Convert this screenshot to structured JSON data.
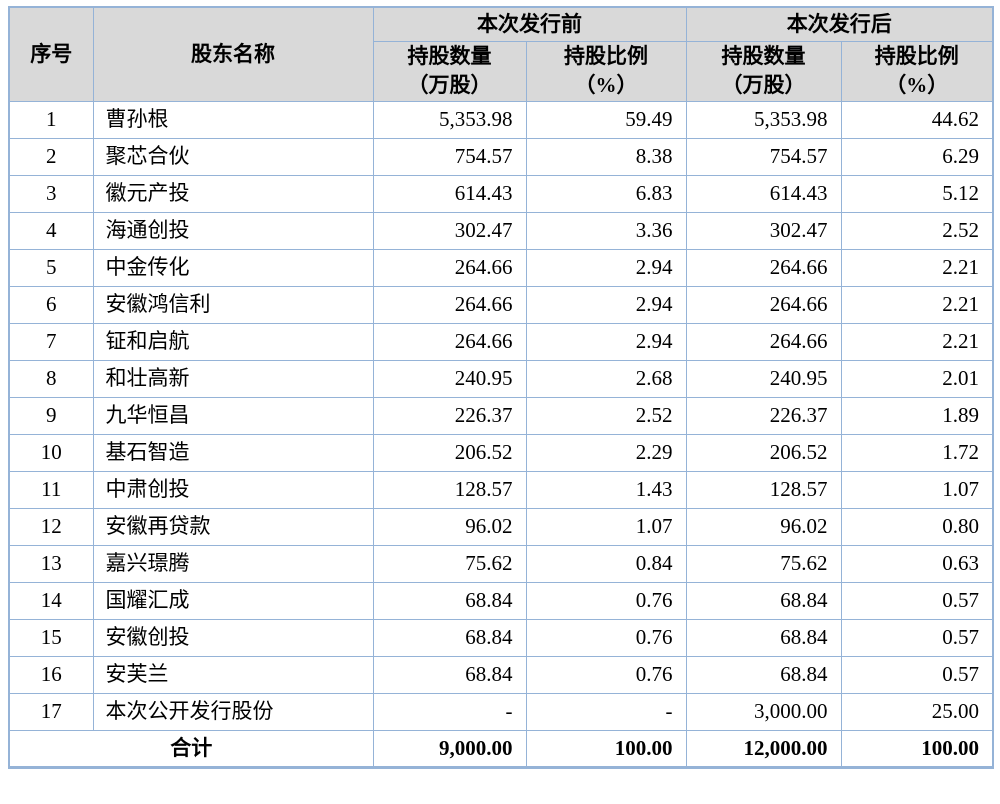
{
  "colors": {
    "border_blue": "#95b3d7",
    "header_gray": "#d9d9d9"
  },
  "table": {
    "header": {
      "col_no": "序号",
      "col_name": "股东名称",
      "group_before": "本次发行前",
      "group_after": "本次发行后",
      "sub_qty_l1": "持股数量",
      "sub_qty_l2": "（万股）",
      "sub_pct_l1": "持股比例",
      "sub_pct_l2": "（%）"
    },
    "rows": [
      {
        "no": "1",
        "name": "曹孙根",
        "qty_before": "5,353.98",
        "pct_before": "59.49",
        "qty_after": "5,353.98",
        "pct_after": "44.62"
      },
      {
        "no": "2",
        "name": "聚芯合伙",
        "qty_before": "754.57",
        "pct_before": "8.38",
        "qty_after": "754.57",
        "pct_after": "6.29"
      },
      {
        "no": "3",
        "name": "徽元产投",
        "qty_before": "614.43",
        "pct_before": "6.83",
        "qty_after": "614.43",
        "pct_after": "5.12"
      },
      {
        "no": "4",
        "name": "海通创投",
        "qty_before": "302.47",
        "pct_before": "3.36",
        "qty_after": "302.47",
        "pct_after": "2.52"
      },
      {
        "no": "5",
        "name": "中金传化",
        "qty_before": "264.66",
        "pct_before": "2.94",
        "qty_after": "264.66",
        "pct_after": "2.21"
      },
      {
        "no": "6",
        "name": "安徽鸿信利",
        "qty_before": "264.66",
        "pct_before": "2.94",
        "qty_after": "264.66",
        "pct_after": "2.21"
      },
      {
        "no": "7",
        "name": "钲和启航",
        "qty_before": "264.66",
        "pct_before": "2.94",
        "qty_after": "264.66",
        "pct_after": "2.21"
      },
      {
        "no": "8",
        "name": "和壮高新",
        "qty_before": "240.95",
        "pct_before": "2.68",
        "qty_after": "240.95",
        "pct_after": "2.01"
      },
      {
        "no": "9",
        "name": "九华恒昌",
        "qty_before": "226.37",
        "pct_before": "2.52",
        "qty_after": "226.37",
        "pct_after": "1.89"
      },
      {
        "no": "10",
        "name": "基石智造",
        "qty_before": "206.52",
        "pct_before": "2.29",
        "qty_after": "206.52",
        "pct_after": "1.72"
      },
      {
        "no": "11",
        "name": "中肃创投",
        "qty_before": "128.57",
        "pct_before": "1.43",
        "qty_after": "128.57",
        "pct_after": "1.07"
      },
      {
        "no": "12",
        "name": "安徽再贷款",
        "qty_before": "96.02",
        "pct_before": "1.07",
        "qty_after": "96.02",
        "pct_after": "0.80"
      },
      {
        "no": "13",
        "name": "嘉兴璟腾",
        "qty_before": "75.62",
        "pct_before": "0.84",
        "qty_after": "75.62",
        "pct_after": "0.63"
      },
      {
        "no": "14",
        "name": "国耀汇成",
        "qty_before": "68.84",
        "pct_before": "0.76",
        "qty_after": "68.84",
        "pct_after": "0.57"
      },
      {
        "no": "15",
        "name": "安徽创投",
        "qty_before": "68.84",
        "pct_before": "0.76",
        "qty_after": "68.84",
        "pct_after": "0.57"
      },
      {
        "no": "16",
        "name": "安芙兰",
        "qty_before": "68.84",
        "pct_before": "0.76",
        "qty_after": "68.84",
        "pct_after": "0.57"
      },
      {
        "no": "17",
        "name": "本次公开发行股份",
        "qty_before": "-",
        "pct_before": "-",
        "qty_after": "3,000.00",
        "pct_after": "25.00"
      }
    ],
    "total": {
      "label": "合计",
      "qty_before": "9,000.00",
      "pct_before": "100.00",
      "qty_after": "12,000.00",
      "pct_after": "100.00"
    }
  }
}
